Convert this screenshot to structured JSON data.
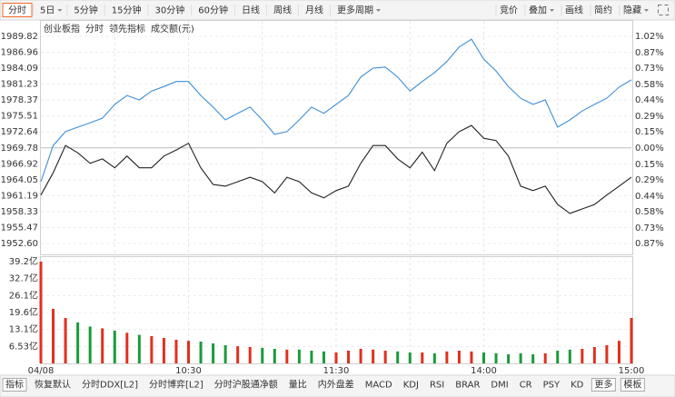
{
  "toolbar": {
    "left": [
      {
        "label": "分时",
        "active": true
      },
      {
        "label": "5日",
        "menu": true
      },
      {
        "label": "5分钟"
      },
      {
        "label": "15分钟"
      },
      {
        "label": "30分钟"
      },
      {
        "label": "60分钟"
      },
      {
        "label": "日线"
      },
      {
        "label": "周线"
      },
      {
        "label": "月线"
      },
      {
        "label": "更多周期",
        "menu": true
      }
    ],
    "right": [
      {
        "label": "竞价"
      },
      {
        "label": "叠加",
        "menu": true
      },
      {
        "label": "画线"
      },
      {
        "label": "简约"
      },
      {
        "label": "隐藏",
        "menu": true
      }
    ]
  },
  "bottom_tabs": [
    {
      "label": "指标",
      "boxed": true
    },
    {
      "label": "恢复默认"
    },
    {
      "label": "分时DDX[L2]"
    },
    {
      "label": "分时博弈[L2]"
    },
    {
      "label": "分时沪股通净额"
    },
    {
      "label": "量比"
    },
    {
      "label": "内外盘差"
    },
    {
      "label": "MACD"
    },
    {
      "label": "KDJ"
    },
    {
      "label": "RSI"
    },
    {
      "label": "BRAR"
    },
    {
      "label": "DMI"
    },
    {
      "label": "CR"
    },
    {
      "label": "PSY"
    },
    {
      "label": "KD"
    },
    {
      "label": "更多",
      "boxed": true
    },
    {
      "label": "模板",
      "boxed": true
    }
  ],
  "chart_data": {
    "type": "line",
    "title": "创业板指",
    "categories": [
      "04/08",
      null,
      null,
      null,
      null,
      null,
      null,
      null,
      null,
      null,
      null,
      null,
      "10:30",
      null,
      null,
      null,
      null,
      null,
      null,
      null,
      null,
      null,
      null,
      null,
      "11:30",
      null,
      null,
      null,
      null,
      null,
      null,
      null,
      null,
      null,
      null,
      null,
      "14:00",
      null,
      null,
      null,
      null,
      null,
      null,
      null,
      null,
      null,
      null,
      null,
      "15:00"
    ],
    "series": [
      {
        "name": "分时",
        "color": "#222222",
        "values": [
          1961.3,
          1965.3,
          1970.2,
          1968.9,
          1967.0,
          1967.8,
          1966.2,
          1968.3,
          1966.2,
          1966.2,
          1968.3,
          1969.4,
          1970.6,
          1966.2,
          1963.2,
          1962.9,
          1963.7,
          1964.5,
          1963.7,
          1961.7,
          1964.5,
          1963.7,
          1961.7,
          1960.8,
          1962.1,
          1962.9,
          1967.0,
          1970.2,
          1970.2,
          1967.8,
          1966.2,
          1969.0,
          1965.7,
          1970.6,
          1972.7,
          1973.8,
          1971.5,
          1971.1,
          1968.3,
          1962.9,
          1962.1,
          1962.9,
          1959.6,
          1958.0,
          1958.8,
          1959.6,
          1961.3,
          1962.9,
          1964.5
        ]
      },
      {
        "name": "领先指标",
        "color": "#3e8fd6",
        "values": [
          1963.7,
          1970.2,
          1972.7,
          1973.5,
          1974.3,
          1975.1,
          1977.6,
          1979.2,
          1978.4,
          1980.0,
          1980.8,
          1981.7,
          1981.7,
          1979.2,
          1977.1,
          1974.8,
          1976.0,
          1977.1,
          1974.8,
          1972.2,
          1972.7,
          1974.8,
          1977.1,
          1976.0,
          1977.6,
          1979.2,
          1982.5,
          1984.1,
          1984.3,
          1982.5,
          1980.0,
          1981.7,
          1983.3,
          1985.3,
          1987.9,
          1989.3,
          1985.7,
          1983.6,
          1980.8,
          1978.7,
          1977.6,
          1978.4,
          1973.5,
          1974.8,
          1976.4,
          1977.6,
          1978.7,
          1980.7,
          1982.0
        ]
      }
    ],
    "ylim": [
      1952.6,
      1989.82
    ],
    "yticks": [
      1989.82,
      1986.96,
      1984.09,
      1981.23,
      1978.37,
      1975.51,
      1972.64,
      1969.78,
      1966.92,
      1964.05,
      1961.19,
      1958.33,
      1955.47,
      {
        "value": 1952.6,
        "label": "1952.60"
      }
    ],
    "y2lim": [
      -0.87,
      1.02
    ],
    "y2ticks": [
      {
        "value": 1.02,
        "label": "1.02%"
      },
      {
        "value": 0.87,
        "label": "0.87%"
      },
      {
        "value": 0.73,
        "label": "0.73%"
      },
      {
        "value": 0.58,
        "label": "0.58%"
      },
      {
        "value": 0.44,
        "label": "0.44%"
      },
      {
        "value": 0.29,
        "label": "0.29%"
      },
      {
        "value": 0.15,
        "label": "0.15%"
      },
      {
        "value": 0,
        "label": "0.00%"
      },
      {
        "value": -0.15,
        "label": "0.15%"
      },
      {
        "value": -0.29,
        "label": "0.29%"
      },
      {
        "value": -0.44,
        "label": "0.44%"
      },
      {
        "value": -0.58,
        "label": "0.58%"
      },
      {
        "value": -0.73,
        "label": "0.73%"
      },
      {
        "value": -0.87,
        "label": "0.87%"
      }
    ],
    "up_color": "#e0301e",
    "down_color": "#1a9a3c",
    "grid": true,
    "volume": {
      "name": "成交额(元)",
      "values": [
        39.2,
        21.0,
        17.5,
        15.8,
        14.2,
        13.5,
        12.6,
        11.8,
        11.0,
        10.5,
        9.8,
        9.1,
        8.7,
        8.4,
        7.7,
        7.0,
        6.6,
        6.3,
        6.0,
        5.6,
        5.3,
        5.3,
        4.9,
        4.6,
        4.2,
        4.9,
        5.6,
        5.3,
        4.9,
        4.6,
        4.2,
        4.2,
        3.9,
        4.6,
        4.9,
        4.6,
        4.2,
        3.9,
        3.5,
        3.9,
        3.5,
        3.9,
        4.9,
        5.3,
        5.6,
        6.3,
        7.0,
        8.7,
        17.5
      ],
      "ylim": [
        0,
        39.2
      ],
      "yticks": [
        {
          "value": 39.2,
          "label": "39.2亿"
        },
        {
          "value": 32.7,
          "label": "32.7亿"
        },
        {
          "value": 26.1,
          "label": "26.1亿"
        },
        {
          "value": 19.6,
          "label": "19.6亿"
        },
        {
          "value": 13.1,
          "label": "13.1亿"
        },
        {
          "value": 6.53,
          "label": "6.53亿"
        }
      ]
    }
  }
}
